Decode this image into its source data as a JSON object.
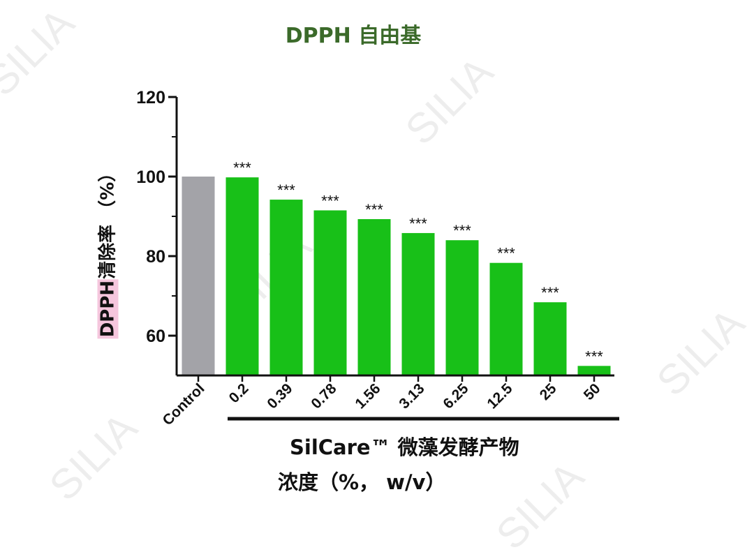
{
  "watermark": "SILIA",
  "chart_data": {
    "type": "bar",
    "title": "DPPH 自由基",
    "ylabel_highlight": "DPPH",
    "ylabel_rest": "清除率 （%）",
    "xlabel_line1": "SilCare™ 微藻发酵产物",
    "xlabel_line2": "浓度（%， w/v）",
    "categories": [
      "Control",
      "0.2",
      "0.39",
      "0.78",
      "1.56",
      "3.13",
      "6.25",
      "12.5",
      "25",
      "50"
    ],
    "values": [
      100,
      99.8,
      94.2,
      91.5,
      89.3,
      85.8,
      84.0,
      78.3,
      68.4,
      52.4
    ],
    "significance": [
      "",
      "***",
      "***",
      "***",
      "***",
      "***",
      "***",
      "***",
      "***",
      "***"
    ],
    "colors": [
      "#a3a3a8",
      "#18c018",
      "#18c018",
      "#18c018",
      "#18c018",
      "#18c018",
      "#18c018",
      "#18c018",
      "#18c018",
      "#18c018"
    ],
    "ylim": [
      50,
      120
    ],
    "yticks": [
      60,
      80,
      100,
      120
    ],
    "grid": false,
    "legend": "none"
  }
}
